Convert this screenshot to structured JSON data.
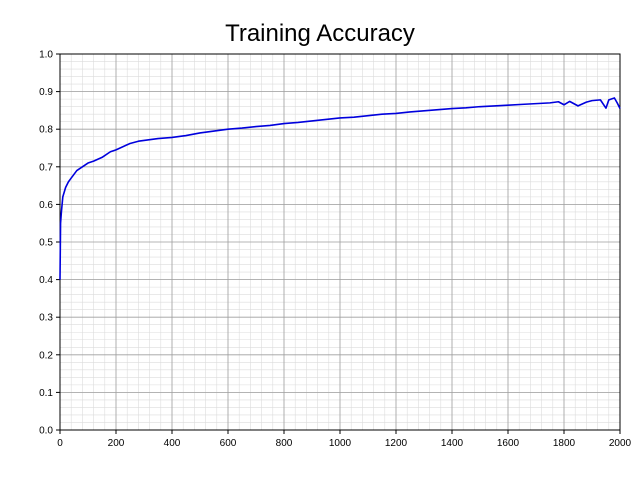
{
  "chart_data": {
    "type": "line",
    "title": "Training Accuracy",
    "xlabel": "",
    "ylabel": "",
    "xlim": [
      0,
      2000
    ],
    "ylim": [
      0.0,
      1.0
    ],
    "x_ticks": [
      0,
      200,
      400,
      600,
      800,
      1000,
      1200,
      1400,
      1600,
      1800,
      2000
    ],
    "y_ticks": [
      0.0,
      0.1,
      0.2,
      0.3,
      0.4,
      0.5,
      0.6,
      0.7,
      0.8,
      0.9,
      1.0
    ],
    "x_tick_labels": [
      "0",
      "200",
      "400",
      "600",
      "800",
      "1000",
      "1200",
      "1400",
      "1600",
      "1800",
      "2000"
    ],
    "y_tick_labels": [
      "0.0",
      "0.1",
      "0.2",
      "0.3",
      "0.4",
      "0.5",
      "0.6",
      "0.7",
      "0.8",
      "0.9",
      "1.0"
    ],
    "grid": true,
    "minor_grid": true,
    "legend": "none",
    "colors": {
      "line": "#0000dd",
      "major_grid": "#a0a0a0",
      "minor_grid": "#dcdcdc",
      "axis": "#000000"
    },
    "series": [
      {
        "x": [
          0,
          2,
          5,
          10,
          20,
          30,
          40,
          50,
          60,
          80,
          100,
          120,
          150,
          180,
          200,
          250,
          280,
          300,
          350,
          400,
          450,
          500,
          550,
          600,
          650,
          700,
          750,
          800,
          850,
          900,
          950,
          1000,
          1050,
          1100,
          1150,
          1200,
          1250,
          1300,
          1350,
          1400,
          1450,
          1500,
          1550,
          1600,
          1650,
          1700,
          1750,
          1780,
          1800,
          1820,
          1850,
          1880,
          1900,
          1930,
          1950,
          1960,
          1980,
          1990,
          2000
        ],
        "y": [
          0.4,
          0.55,
          0.58,
          0.62,
          0.645,
          0.66,
          0.67,
          0.68,
          0.69,
          0.7,
          0.71,
          0.715,
          0.725,
          0.74,
          0.745,
          0.762,
          0.768,
          0.77,
          0.775,
          0.778,
          0.783,
          0.79,
          0.795,
          0.8,
          0.803,
          0.807,
          0.81,
          0.815,
          0.818,
          0.822,
          0.826,
          0.83,
          0.832,
          0.836,
          0.84,
          0.842,
          0.846,
          0.849,
          0.852,
          0.855,
          0.857,
          0.86,
          0.862,
          0.864,
          0.866,
          0.868,
          0.87,
          0.873,
          0.865,
          0.874,
          0.862,
          0.872,
          0.876,
          0.878,
          0.856,
          0.878,
          0.883,
          0.87,
          0.855
        ]
      }
    ]
  }
}
